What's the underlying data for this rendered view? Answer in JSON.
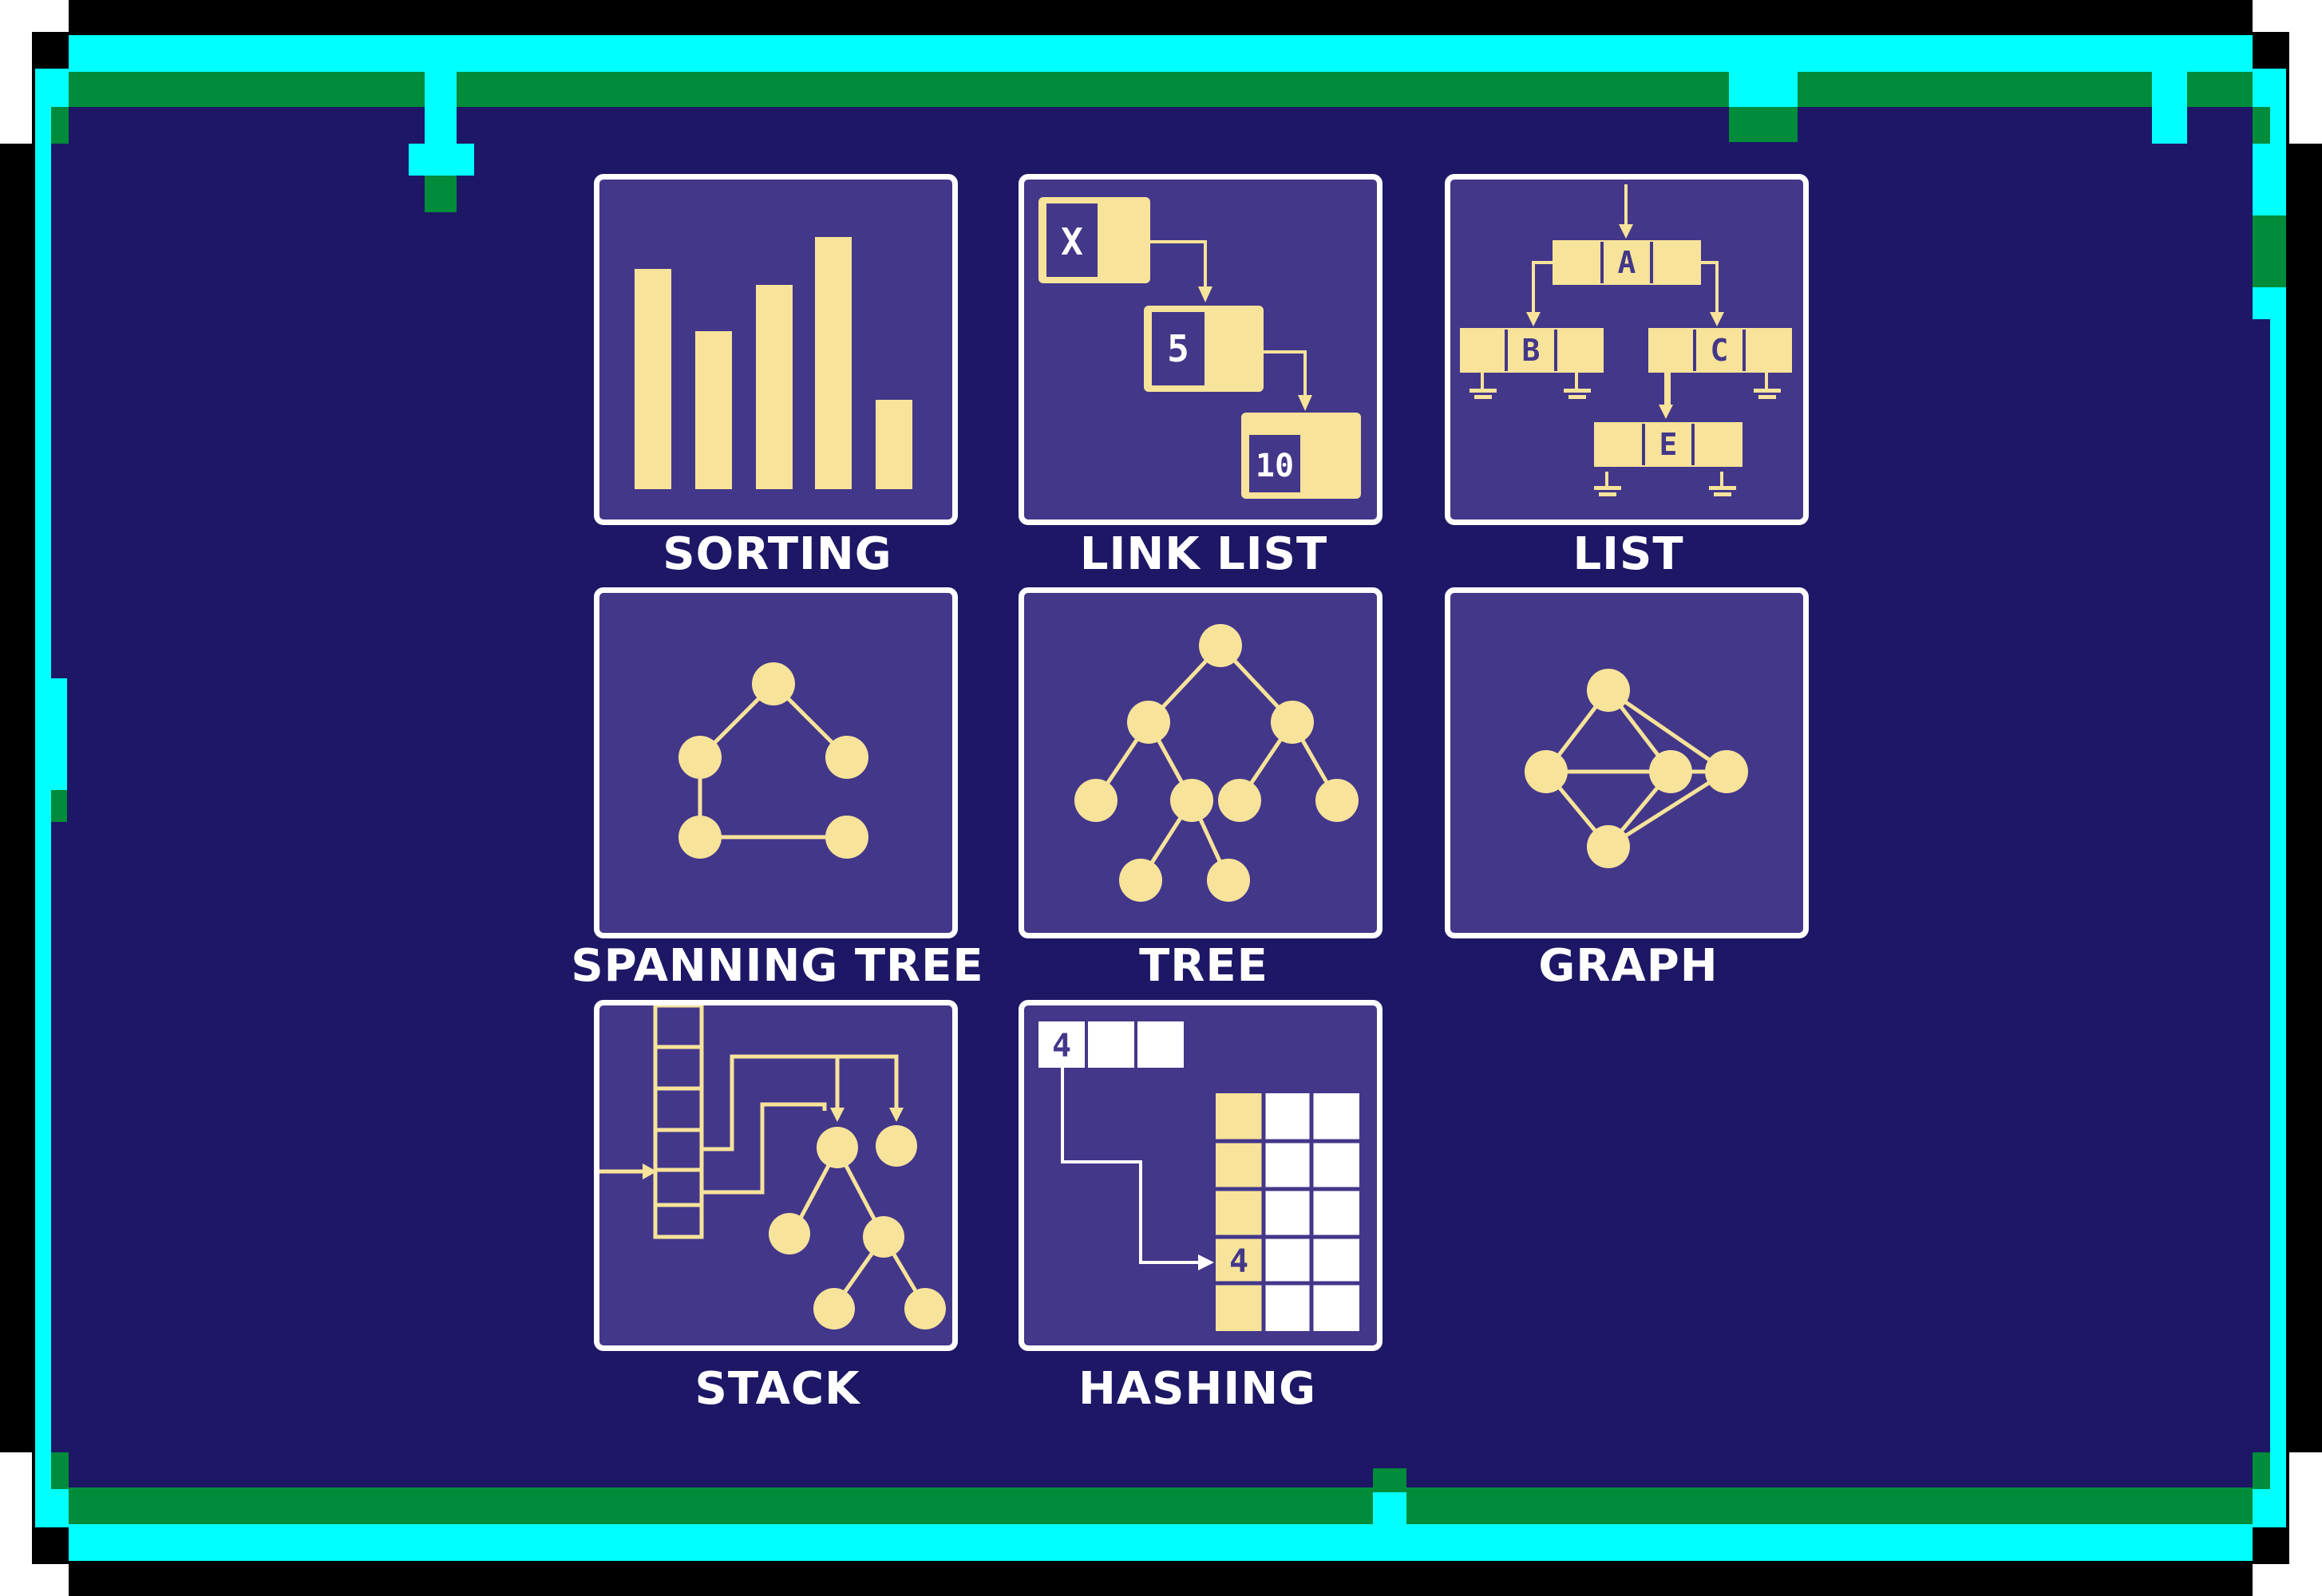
{
  "colors": {
    "background": "#1d1766",
    "card": "#43378a",
    "card_border": "#ffffff",
    "icon": "#f7e39a",
    "frame_cyan": "#00ffff",
    "frame_green": "#008c3a",
    "frame_black": "#000000"
  },
  "menu": {
    "items": [
      {
        "label": "SORTING",
        "icon": "bar-chart-icon"
      },
      {
        "label": "LINK LIST",
        "icon": "linked-list-icon"
      },
      {
        "label": "LIST",
        "icon": "list-tree-icon"
      },
      {
        "label": "SPANNING TREE",
        "icon": "spanning-tree-icon"
      },
      {
        "label": "TREE",
        "icon": "tree-icon"
      },
      {
        "label": "GRAPH",
        "icon": "graph-icon"
      },
      {
        "label": "STACK",
        "icon": "stack-icon"
      },
      {
        "label": "HASHING",
        "icon": "hash-table-icon"
      }
    ]
  },
  "icon_text": {
    "link_list_nodes": [
      "X",
      "5",
      "10"
    ],
    "list_nodes": [
      "A",
      "B",
      "C",
      "E"
    ],
    "hashing_key": "4",
    "hashing_slot": "4"
  }
}
